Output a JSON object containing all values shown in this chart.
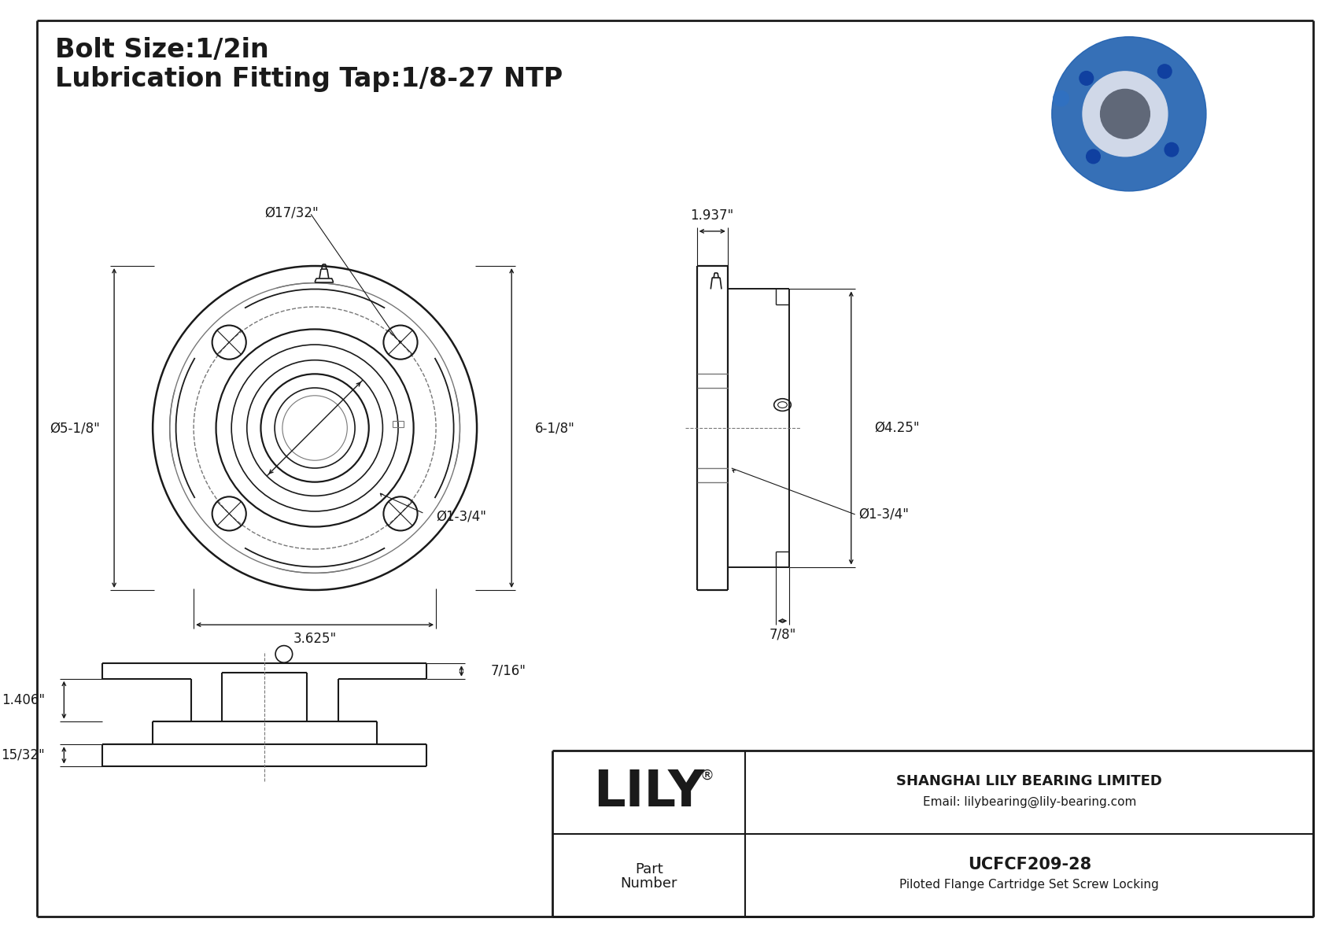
{
  "title_line1": "Bolt Size:1/2in",
  "title_line2": "Lubrication Fitting Tap:1/8-27 NTP",
  "bg_color": "#ffffff",
  "line_color": "#1a1a1a",
  "dim_color": "#1a1a1a",
  "light_line_color": "#777777",
  "company_name": "SHANGHAI LILY BEARING LIMITED",
  "company_email": "Email: lilybearing@lily-bearing.com",
  "part_number": "UCFCF209-28",
  "part_desc": "Piloted Flange Cartridge Set Screw Locking",
  "part_label_1": "Part",
  "part_label_2": "Number",
  "lily_text": "LILY",
  "dims": {
    "bolt_hole_dia": "Ø17/32\"",
    "flange_dia": "Ø5-1/8\"",
    "bolt_circle": "3.625\"",
    "bore_dia": "Ø1-3/4\"",
    "height": "6-1/8\"",
    "side_width": "1.937\"",
    "side_dia": "Ø4.25\"",
    "side_depth": "7/8\"",
    "bot_height": "7/16\"",
    "bot_left_dim": "1.406\"",
    "bot_bottom": "15/32\""
  }
}
